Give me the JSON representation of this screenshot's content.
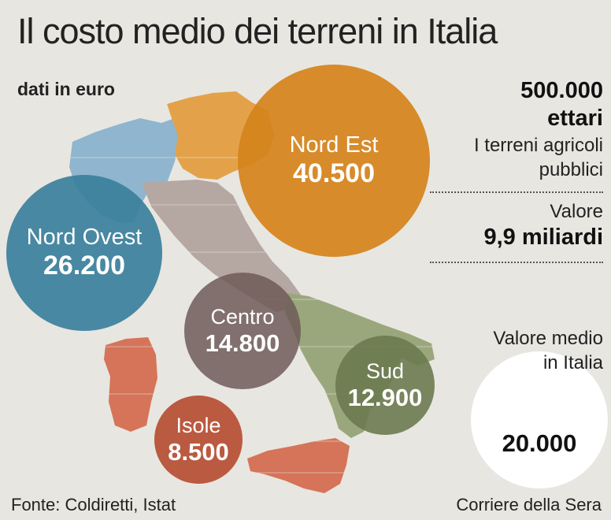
{
  "title": "Il costo medio dei terreni in Italia",
  "subtitle": "dati in euro",
  "regions": [
    {
      "name": "Nord Est",
      "value": "40.500",
      "color": "#d5831c"
    },
    {
      "name": "Nord Ovest",
      "value": "26.200",
      "color": "#3a809c"
    },
    {
      "name": "Centro",
      "value": "14.800",
      "color": "#6e5a58"
    },
    {
      "name": "Sud",
      "value": "12.900",
      "color": "#6c7a50"
    },
    {
      "name": "Isole",
      "value": "8.500",
      "color": "#b54e32"
    }
  ],
  "stats": {
    "hectares_value": "500.000",
    "hectares_unit": "ettari",
    "hectares_desc_1": "I terreni agricoli",
    "hectares_desc_2": "pubblici",
    "value_label": "Valore",
    "value_amount": "9,9 miliardi",
    "avg_label_1": "Valore medio",
    "avg_label_2": "in Italia",
    "avg_value": "20.000"
  },
  "source": "Fonte: Coldiretti, Istat",
  "credit": "Corriere della Sera"
}
